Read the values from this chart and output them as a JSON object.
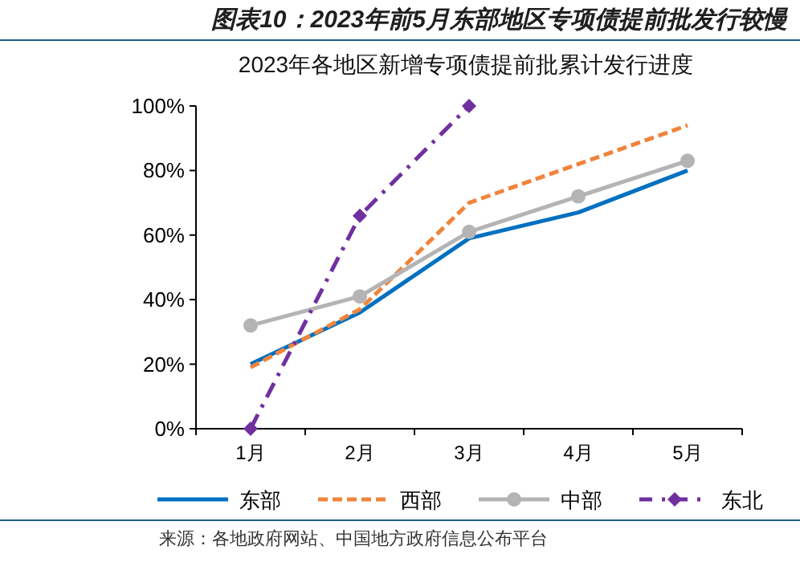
{
  "chart_data": {
    "type": "line",
    "title": "图表10：2023年前5月东部地区专项债提前批发行较慢",
    "subtitle": "2023年各地区新增专项债提前批累计发行进度",
    "categories": [
      "1月",
      "2月",
      "3月",
      "4月",
      "5月"
    ],
    "series": [
      {
        "name": "东部",
        "color": "#0070c0",
        "line_style": "solid",
        "marker": "none",
        "values": [
          20,
          36,
          59,
          67,
          80
        ]
      },
      {
        "name": "西部",
        "color": "#f0843c",
        "line_style": "dashed",
        "marker": "none",
        "values": [
          19,
          37,
          70,
          82,
          94
        ]
      },
      {
        "name": "中部",
        "color": "#b4b4b4",
        "line_style": "solid",
        "marker": "circle",
        "values": [
          32,
          41,
          61,
          72,
          83
        ]
      },
      {
        "name": "东北",
        "color": "#7030a0",
        "line_style": "dashdot",
        "marker": "diamond",
        "values": [
          0,
          66,
          100,
          null,
          null
        ]
      }
    ],
    "ylim": [
      0,
      100
    ],
    "yticks": [
      {
        "value": 0,
        "label": "0%"
      },
      {
        "value": 20,
        "label": "20%"
      },
      {
        "value": 40,
        "label": "40%"
      },
      {
        "value": 60,
        "label": "60%"
      },
      {
        "value": 80,
        "label": "80%"
      },
      {
        "value": 100,
        "label": "100%"
      }
    ],
    "grid": false,
    "legend": "bottom",
    "annotations": [
      "来源：各地政府网站、中国地方政府信息公布平台"
    ]
  }
}
